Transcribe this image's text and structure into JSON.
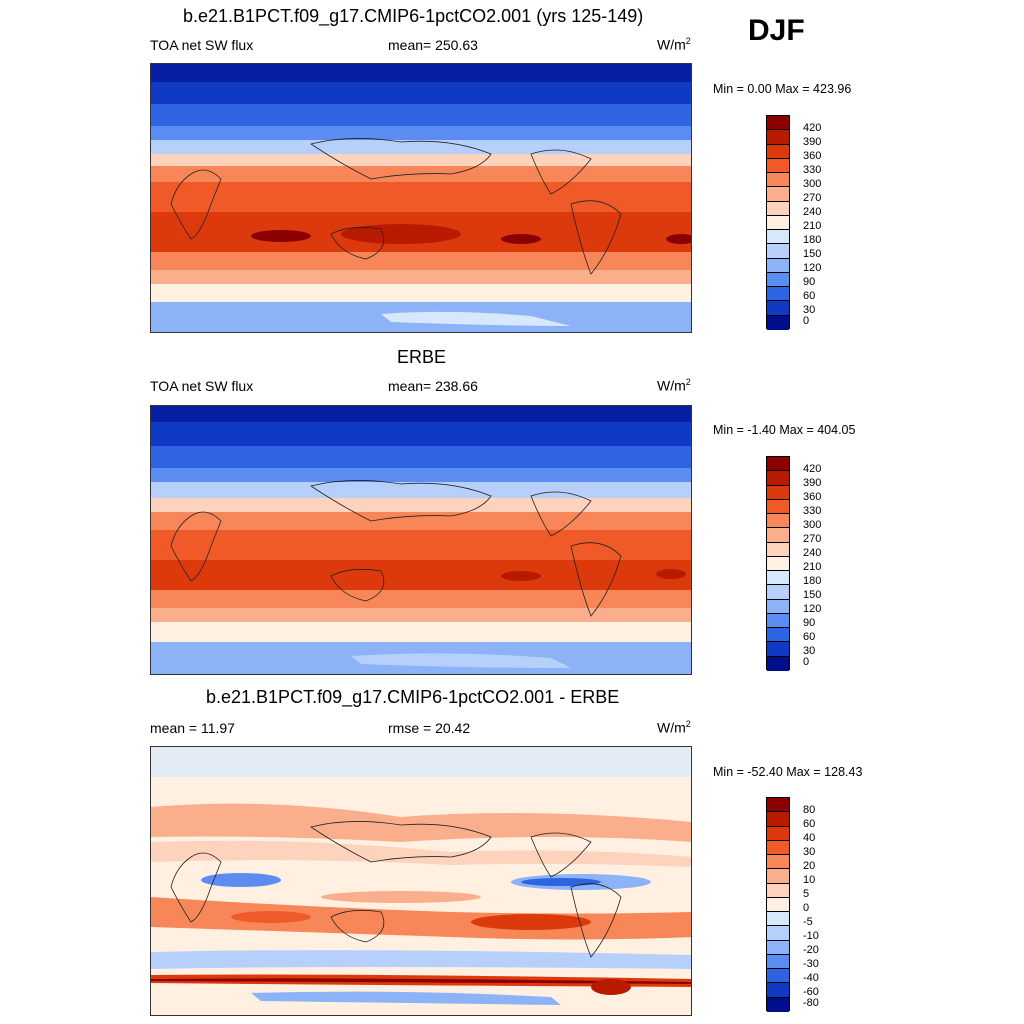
{
  "season": "DJF",
  "units_base": "W/m",
  "units_exp": "2",
  "panels": [
    {
      "title": "b.e21.B1PCT.f09_g17.CMIP6-1pctCO2.001 (yrs 125-149)",
      "left_label": "TOA net SW flux",
      "center_label": "mean= 250.63",
      "minmax": "Min =   0.00 Max = 423.96",
      "colorbar": [
        "420",
        "390",
        "360",
        "330",
        "300",
        "270",
        "240",
        "210",
        "180",
        "150",
        "120",
        "90",
        "60",
        "30",
        "0"
      ]
    },
    {
      "title": "ERBE",
      "left_label": "TOA net SW flux",
      "center_label": "mean= 238.66",
      "minmax": "Min =  -1.40 Max = 404.05",
      "colorbar": [
        "420",
        "390",
        "360",
        "330",
        "300",
        "270",
        "240",
        "210",
        "180",
        "150",
        "120",
        "90",
        "60",
        "30",
        "0"
      ]
    },
    {
      "title": "b.e21.B1PCT.f09_g17.CMIP6-1pctCO2.001 - ERBE",
      "left_label": "mean =  11.97",
      "center_label": "rmse =  20.42",
      "minmax": "Min = -52.40 Max = 128.43",
      "colorbar": [
        "80",
        "60",
        "40",
        "30",
        "20",
        "10",
        "5",
        "0",
        "-5",
        "-10",
        "-20",
        "-30",
        "-40",
        "-60",
        "-80"
      ]
    }
  ],
  "colors": {
    "scale": [
      "#8b0000",
      "#b81a00",
      "#dc3a0c",
      "#f05a28",
      "#f78758",
      "#fbae8c",
      "#fdd3bd",
      "#fff0e1",
      "#d7e8fc",
      "#b6d0fb",
      "#8cb2f7",
      "#5b8cf1",
      "#2e63e2",
      "#1039c4",
      "#000e8c"
    ],
    "land": "#00000000",
    "coast": "#222222"
  }
}
